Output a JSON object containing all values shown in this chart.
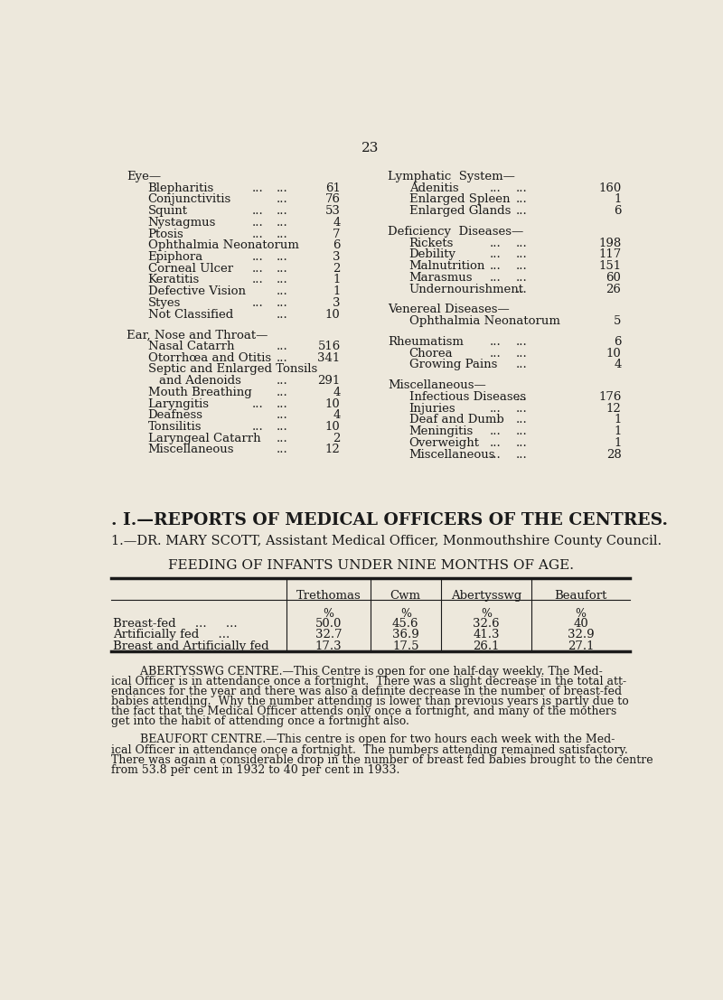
{
  "bg_color": "#ede8dc",
  "text_color": "#1a1a1a",
  "page_number": "23",
  "eye_items": [
    {
      "label": "Blepharitis",
      "dots1": true,
      "dots2": true,
      "val": "61"
    },
    {
      "label": "Conjunctivitis",
      "dots1": false,
      "dots2": true,
      "val": "76"
    },
    {
      "label": "Squint",
      "dots1": true,
      "dots2": true,
      "val": "53"
    },
    {
      "label": "Nystagmus",
      "dots1": true,
      "dots2": true,
      "val": "4"
    },
    {
      "label": "Ptosis",
      "dots1": true,
      "dots2": true,
      "val": "7"
    },
    {
      "label": "Ophthalmia Neonatorum",
      "dots1": false,
      "dots2": false,
      "val": "6"
    },
    {
      "label": "Epiphora",
      "dots1": true,
      "dots2": true,
      "val": "3"
    },
    {
      "label": "Corneal Ulcer",
      "dots1": true,
      "dots2": true,
      "val": "2"
    },
    {
      "label": "Keratitis",
      "dots1": true,
      "dots2": true,
      "val": "1"
    },
    {
      "label": "Defective Vision",
      "dots1": false,
      "dots2": true,
      "val": "1"
    },
    {
      "label": "Styes",
      "dots1": true,
      "dots2": true,
      "val": "3"
    },
    {
      "label": "Not Classified",
      "dots1": false,
      "dots2": true,
      "val": "10"
    }
  ],
  "ent_items": [
    {
      "label": "Nasal Catarrh",
      "dots1": false,
      "dots2": true,
      "val": "516",
      "indent": false
    },
    {
      "label": "Otorrhœa and Otitis",
      "dots1": false,
      "dots2": true,
      "val": "341",
      "indent": false
    },
    {
      "label": "Septic and Enlarged Tonsils",
      "dots1": false,
      "dots2": false,
      "val": "",
      "indent": false
    },
    {
      "label": "and Adenoids",
      "dots1": false,
      "dots2": true,
      "val": "291",
      "indent": true
    },
    {
      "label": "Mouth Breathing",
      "dots1": false,
      "dots2": true,
      "val": "4",
      "indent": false
    },
    {
      "label": "Laryngitis",
      "dots1": true,
      "dots2": true,
      "val": "10",
      "indent": false
    },
    {
      "label": "Deafness",
      "dots1": false,
      "dots2": true,
      "val": "4",
      "indent": false
    },
    {
      "label": "Tonsilitis",
      "dots1": true,
      "dots2": true,
      "val": "10",
      "indent": false
    },
    {
      "label": "Laryngeal Catarrh",
      "dots1": false,
      "dots2": true,
      "val": "2",
      "indent": false
    },
    {
      "label": "Miscellaneous",
      "dots1": false,
      "dots2": true,
      "val": "12",
      "indent": false
    }
  ],
  "lymph_items": [
    {
      "label": "Adenitis",
      "dots1": true,
      "dots2": true,
      "val": "160"
    },
    {
      "label": "Enlarged Spleen",
      "dots1": false,
      "dots2": true,
      "val": "1"
    },
    {
      "label": "Enlarged Glands",
      "dots1": false,
      "dots2": true,
      "val": "6"
    }
  ],
  "defic_items": [
    {
      "label": "Rickets",
      "dots1": true,
      "dots2": true,
      "val": "198"
    },
    {
      "label": "Debility",
      "dots1": true,
      "dots2": true,
      "val": "117"
    },
    {
      "label": "Malnutrition",
      "dots1": true,
      "dots2": true,
      "val": "151"
    },
    {
      "label": "Marasmus",
      "dots1": true,
      "dots2": true,
      "val": "60"
    },
    {
      "label": "Undernourishment",
      "dots1": false,
      "dots2": true,
      "val": "26"
    }
  ],
  "veneral_items": [
    {
      "label": "Ophthalmia Neonatorum",
      "dots1": false,
      "dots2": false,
      "val": "5"
    }
  ],
  "rheum_items": [
    {
      "label": "Rheumatism",
      "dots1": true,
      "dots2": true,
      "val": "6",
      "indent": false
    },
    {
      "label": "Chorea",
      "dots1": true,
      "dots2": true,
      "val": "10",
      "indent": true
    },
    {
      "label": "Growing Pains",
      "dots1": false,
      "dots2": true,
      "val": "4",
      "indent": true
    }
  ],
  "misc_items": [
    {
      "label": "Infectious Diseases",
      "dots1": false,
      "dots2": true,
      "val": "176"
    },
    {
      "label": "Injuries",
      "dots1": true,
      "dots2": true,
      "val": "12"
    },
    {
      "label": "Deaf and Dumb",
      "dots1": false,
      "dots2": true,
      "val": "1"
    },
    {
      "label": "Meningitis",
      "dots1": true,
      "dots2": true,
      "val": "1"
    },
    {
      "label": "Overweight",
      "dots1": true,
      "dots2": true,
      "val": "1"
    },
    {
      "label": "Miscellaneous",
      "dots1": true,
      "dots2": true,
      "val": "28"
    }
  ],
  "section_heading": ". I.—REPORTS OF MEDICAL OFFICERS OF THE CENTRES.",
  "sub_heading": "1.—DR. MARY SCOTT, Assistant Medical Officer, Monmouthshire County Council.",
  "table_title": "FEEDING OF INFANTS UNDER NINE MONTHS OF AGE.",
  "table_headers": [
    "",
    "Trethomas",
    "Cwm",
    "Abertysswg",
    "Beaufort"
  ],
  "table_rows": [
    [
      "Breast-fed",
      "...",
      "...",
      "50.0",
      "45.6",
      "32.6",
      "40"
    ],
    [
      "Artificially fed",
      "",
      "...",
      "32.7",
      "36.9",
      "41.3",
      "32.9"
    ],
    [
      "Breast and Artificially fed",
      "",
      "",
      "17.3",
      "17.5",
      "26.1",
      "27.1"
    ]
  ],
  "abertysswg_para": "ABERTYSSWG CENTRE.—This Centre is open for one half-day weekly. The Med-ical Officer is in attendance once a fortnight.  There was a slight decrease in the total att-endances for the year and there was also a definite decrease in the number of breast-fed babies attending.  Why the number attending is lower than previous years is partly due to the fact that the Medical Officer attends only once a fortnight, and many of the mothers get into the habit of attending once a fortnight also.",
  "beaufort_para": "BEAUFORT CENTRE.—This centre is open for two hours each week with the Med-ical Officer in attendance once a fortnight.  The numbers attending remained satisfactory. There was again a considerable drop in the number of breast fed babies brought to the centre from 53.8 per cent in 1932 to 40 per cent in 1933."
}
